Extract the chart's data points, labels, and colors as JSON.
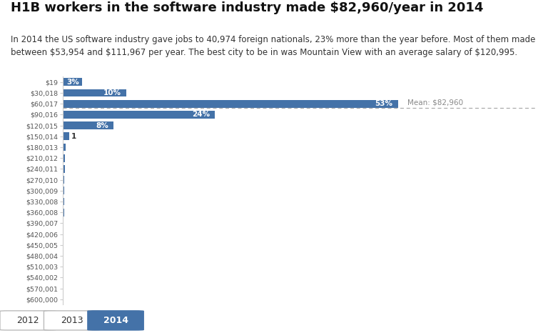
{
  "title": "H1B workers in the software industry made $82,960/year in 2014",
  "subtitle": "In 2014 the US software industry gave jobs to 40,974 foreign nationals, 23% more than the year before. Most of them made\nbetween $53,954 and $111,967 per year. The best city to be in was Mountain View with an average salary of $120,995.",
  "bar_color": "#4472a8",
  "mean_label": "Mean: $82,960",
  "y_labels": [
    "$19",
    "$30,018",
    "$60,017",
    "$90,016",
    "$120,015",
    "$150,014",
    "$180,013",
    "$210,012",
    "$240,011",
    "$270,010",
    "$300,009",
    "$330,008",
    "$360,008",
    "$390,007",
    "$420,006",
    "$450,005",
    "$480,004",
    "$510,003",
    "$540,002",
    "$570,001",
    "$600,000"
  ],
  "bar_values": [
    3,
    10,
    53,
    24,
    8,
    1,
    0.45,
    0.35,
    0.28,
    0.22,
    0.2,
    0.17,
    0.15,
    0.13,
    0.12,
    0.11,
    0.1,
    0.09,
    0.08,
    0.07,
    0.06
  ],
  "bar_labels": [
    "3%",
    "10%",
    "53%",
    "24%",
    "8%",
    "1",
    "",
    "",
    "",
    "",
    "",
    "",
    "",
    "",
    "",
    "",
    "",
    "",
    "",
    "",
    ""
  ],
  "background_color": "#ffffff",
  "title_fontsize": 13,
  "subtitle_fontsize": 8.5,
  "tab_labels": [
    "2012",
    "2013",
    "2014"
  ],
  "active_tab": "2014",
  "tab_bg_active": "#4472a8",
  "tab_bg_inactive": "#ffffff",
  "tab_text_active": "#ffffff",
  "tab_text_inactive": "#333333",
  "mean_line_color": "#aaaaaa",
  "mean_text_color": "#888888"
}
